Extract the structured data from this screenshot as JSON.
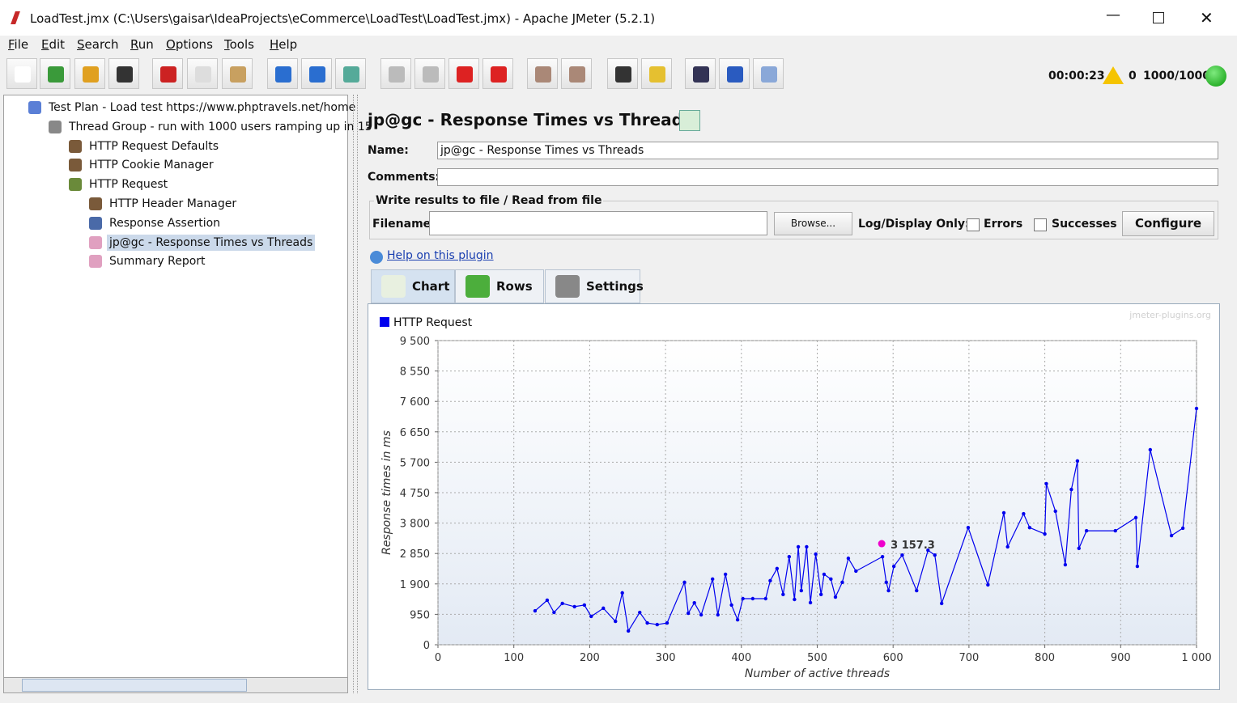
{
  "title_bar": "LoadTest.jmx (C:\\Users\\gaisar\\IdeaProjects\\eCommerce\\LoadTest\\LoadTest.jmx) - Apache JMeter (5.2.1)",
  "menu": [
    "File",
    "Edit",
    "Search",
    "Run",
    "Options",
    "Tools",
    "Help"
  ],
  "status": {
    "timer": "00:00:23",
    "warnings": "0",
    "threads": "1000/1000"
  },
  "tree": {
    "nodes": [
      "Test Plan - Load test https://www.phptravels.net/home",
      "Thread Group - run with 1000 users ramping up in 15",
      "HTTP Request Defaults",
      "HTTP Cookie Manager",
      "HTTP Request",
      "HTTP Header Manager",
      "Response Assertion",
      "jp@gc - Response Times vs Threads",
      "Summary Report"
    ]
  },
  "panel": {
    "title": "jp@gc - Response Times vs Threads",
    "name_label": "Name:",
    "name_value": "jp@gc - Response Times vs Threads",
    "comments_label": "Comments:",
    "file_group": "Write results to file / Read from file",
    "filename_label": "Filename",
    "browse": "Browse...",
    "log_label": "Log/Display Only:",
    "errors": "Errors",
    "successes": "Successes",
    "configure": "Configure",
    "help_link": "Help on this plugin",
    "tabs": [
      "Chart",
      "Rows",
      "Settings"
    ],
    "watermark": "jmeter-plugins.org"
  },
  "chart_data": {
    "type": "line",
    "xlabel": "Number of active threads",
    "ylabel": "Response times in ms",
    "grid": true,
    "xlim": [
      0,
      1000
    ],
    "ylim": [
      0,
      9500
    ],
    "xticks": [
      0,
      100,
      200,
      300,
      400,
      500,
      600,
      700,
      800,
      900,
      {
        "value": 1000,
        "label": "1 000"
      }
    ],
    "yticks": [
      0,
      {
        "value": 950,
        "label": "950"
      },
      {
        "value": 1900,
        "label": "1 900"
      },
      {
        "value": 2850,
        "label": "2 850"
      },
      {
        "value": 3800,
        "label": "3 800"
      },
      {
        "value": 4750,
        "label": "4 750"
      },
      {
        "value": 5700,
        "label": "5 700"
      },
      {
        "value": 6650,
        "label": "6 650"
      },
      {
        "value": 7600,
        "label": "7 600"
      },
      {
        "value": 8550,
        "label": "8 550"
      },
      {
        "value": 9500,
        "label": "9 500"
      }
    ],
    "series": [
      {
        "name": "HTTP Request",
        "color": "#0000ee",
        "x": [
          128,
          144,
          153,
          164,
          180,
          193,
          202,
          218,
          234,
          243,
          251,
          266,
          276,
          289,
          302,
          325,
          330,
          338,
          347,
          362,
          369,
          379,
          387,
          395,
          402,
          415,
          432,
          438,
          447,
          455,
          463,
          470,
          475,
          479,
          486,
          491,
          498,
          505,
          509,
          518,
          524,
          533,
          541,
          551,
          586,
          591,
          594,
          601,
          612,
          631,
          646,
          655,
          664,
          699,
          725,
          746,
          751,
          772,
          780,
          800,
          802,
          814,
          827,
          835,
          843,
          845,
          855,
          893,
          920,
          922,
          939,
          967,
          982,
          1000
        ],
        "values": [
          1060,
          1390,
          1010,
          1290,
          1190,
          1240,
          885,
          1140,
          730,
          1620,
          430,
          1010,
          680,
          630,
          680,
          1950,
          985,
          1310,
          935,
          2050,
          935,
          2200,
          1240,
          780,
          1440,
          1440,
          1440,
          2000,
          2380,
          1570,
          2750,
          1415,
          3060,
          1690,
          3060,
          1315,
          2830,
          1570,
          2200,
          2050,
          1490,
          1950,
          2700,
          2300,
          2750,
          1950,
          1690,
          2450,
          2800,
          1690,
          2950,
          2800,
          1290,
          3660,
          1870,
          4120,
          3060,
          4090,
          3660,
          3460,
          5030,
          4170,
          2500,
          4850,
          5740,
          3010,
          3560,
          3560,
          3970,
          2450,
          6090,
          3410,
          3640,
          7380
        ]
      }
    ],
    "annotation": {
      "x": 585,
      "y": 3157.3,
      "label": "3 157.3",
      "color": "#ee00cc"
    }
  }
}
